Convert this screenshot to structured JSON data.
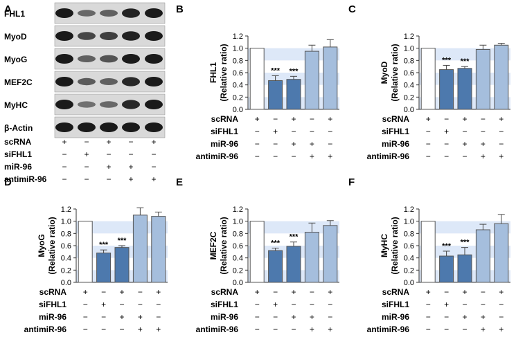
{
  "colors": {
    "band": "#dde8f8",
    "bar_scrna": "#ffffff",
    "bar_sifhl1": "#4d79ad",
    "bar_mir96": "#4d79ad",
    "bar_anti": "#a5bedd",
    "bar_mir_anti": "#a5bedd",
    "blot_band": "#1a1a1a",
    "blot_bg": "#d9d9d9",
    "axis": "#333333"
  },
  "western_blot": {
    "panel_label": "A",
    "proteins": [
      "FHL1",
      "MyoD",
      "MyoG",
      "MEF2C",
      "MyHC",
      "β-Actin"
    ],
    "conditions": [
      {
        "label": "scRNA",
        "signs": [
          "+",
          "−",
          "+",
          "−",
          "+"
        ]
      },
      {
        "label": "siFHL1",
        "signs": [
          "−",
          "+",
          "−",
          "−",
          "−"
        ]
      },
      {
        "label": "miR-96",
        "signs": [
          "−",
          "−",
          "+",
          "+",
          "−"
        ]
      },
      {
        "label": "antimiR-96",
        "signs": [
          "−",
          "−",
          "−",
          "+",
          "+"
        ]
      }
    ]
  },
  "chart_data": [
    {
      "panel_label": "B",
      "type": "bar",
      "ylabel": [
        "FHL1",
        "(Relative ratio)"
      ],
      "ylim": [
        0,
        1.2
      ],
      "yticks": [
        "0.0",
        "0.2",
        "0.4",
        "0.6",
        "0.8",
        "1.0",
        "1.2"
      ],
      "values": [
        1.0,
        0.47,
        0.49,
        0.95,
        1.02
      ],
      "errors": [
        0.0,
        0.08,
        0.05,
        0.1,
        0.12
      ],
      "significance": [
        "",
        "***",
        "***",
        "",
        ""
      ]
    },
    {
      "panel_label": "C",
      "type": "bar",
      "ylabel": [
        "MyoD",
        "(Relative ratio)"
      ],
      "ylim": [
        0,
        1.2
      ],
      "yticks": [
        "0.0",
        "0.2",
        "0.4",
        "0.6",
        "0.8",
        "1.0",
        "1.2"
      ],
      "values": [
        1.0,
        0.65,
        0.67,
        0.98,
        1.05
      ],
      "errors": [
        0.0,
        0.07,
        0.03,
        0.07,
        0.03
      ],
      "significance": [
        "",
        "***",
        "***",
        "",
        ""
      ]
    },
    {
      "panel_label": "D",
      "type": "bar",
      "ylabel": [
        "MyoG",
        "(Relative ratio)"
      ],
      "ylim": [
        0,
        1.2
      ],
      "yticks": [
        "0.0",
        "0.2",
        "0.4",
        "0.6",
        "0.8",
        "1.0",
        "1.2"
      ],
      "values": [
        1.0,
        0.48,
        0.57,
        1.1,
        1.08
      ],
      "errors": [
        0.0,
        0.05,
        0.03,
        0.12,
        0.07
      ],
      "significance": [
        "",
        "***",
        "***",
        "",
        ""
      ]
    },
    {
      "panel_label": "E",
      "type": "bar",
      "ylabel": [
        "MEF2C",
        "(Relative ratio)"
      ],
      "ylim": [
        0,
        1.2
      ],
      "yticks": [
        "0.0",
        "0.2",
        "0.4",
        "0.6",
        "0.8",
        "1.0",
        "1.2"
      ],
      "values": [
        1.0,
        0.52,
        0.59,
        0.82,
        0.93
      ],
      "errors": [
        0.0,
        0.04,
        0.07,
        0.15,
        0.08
      ],
      "significance": [
        "",
        "***",
        "***",
        "",
        ""
      ]
    },
    {
      "panel_label": "F",
      "type": "bar",
      "ylabel": [
        "MyHC",
        "(Relative ratio)"
      ],
      "ylim": [
        0,
        1.2
      ],
      "yticks": [
        "0.0",
        "0.2",
        "0.4",
        "0.6",
        "0.8",
        "1.0",
        "1.2"
      ],
      "values": [
        1.0,
        0.43,
        0.45,
        0.86,
        0.96
      ],
      "errors": [
        0.0,
        0.08,
        0.12,
        0.09,
        0.15
      ],
      "significance": [
        "",
        "***",
        "***",
        "",
        ""
      ]
    }
  ]
}
